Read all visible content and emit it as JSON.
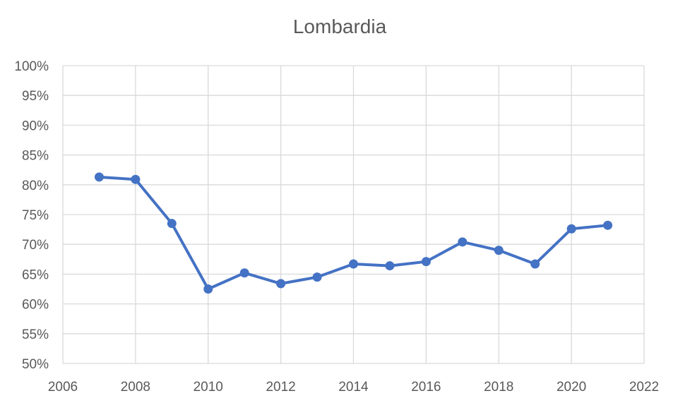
{
  "chart_data": {
    "type": "line",
    "title": "Lombardia",
    "xlabel": "",
    "ylabel": "",
    "xlim": [
      2006,
      2022
    ],
    "ylim": [
      50,
      100
    ],
    "x_ticks": [
      2006,
      2008,
      2010,
      2012,
      2014,
      2016,
      2018,
      2020,
      2022
    ],
    "y_ticks": [
      50,
      55,
      60,
      65,
      70,
      75,
      80,
      85,
      90,
      95,
      100
    ],
    "y_tick_labels": [
      "50%",
      "55%",
      "60%",
      "65%",
      "70%",
      "75%",
      "80%",
      "85%",
      "90%",
      "95%",
      "100%"
    ],
    "x_tick_labels": [
      "2006",
      "2008",
      "2010",
      "2012",
      "2014",
      "2016",
      "2018",
      "2020",
      "2022"
    ],
    "grid": true,
    "legend": "none",
    "series": [
      {
        "name": "Lombardia",
        "color": "#4472C4",
        "x": [
          2007,
          2008,
          2009,
          2010,
          2011,
          2012,
          2013,
          2014,
          2015,
          2016,
          2017,
          2018,
          2019,
          2020,
          2021
        ],
        "values": [
          81.3,
          80.9,
          73.5,
          62.5,
          65.2,
          63.4,
          64.5,
          66.7,
          66.4,
          67.1,
          70.4,
          69.0,
          66.7,
          72.6,
          73.2
        ]
      }
    ]
  }
}
